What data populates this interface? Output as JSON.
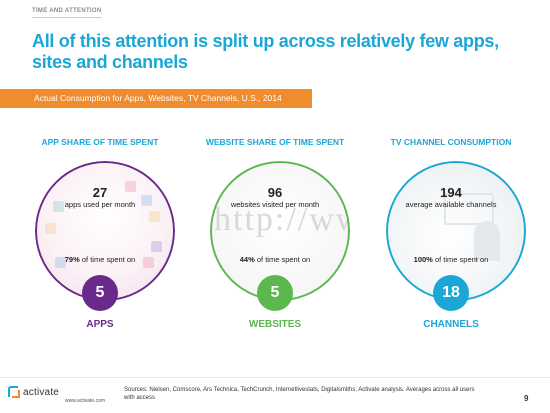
{
  "section_label": "TIME AND ATTENTION",
  "headline": "All of this attention is split up across relatively few apps, sites and channels",
  "banner": "Actual Consumption for Apps, Websites, TV Channels, U.S., 2014",
  "columns": [
    {
      "title": "APP SHARE OF TIME SPENT",
      "count": "27",
      "description": "apps used per month",
      "share_percent": "79%",
      "share_text": " of time spent on",
      "badge_value": "5",
      "badge_label": "APPS",
      "color": "#6a2a8c"
    },
    {
      "title": "WEBSITE SHARE OF TIME SPENT",
      "count": "96",
      "description": "websites visited per month",
      "share_percent": "44%",
      "share_text": " of time spent on",
      "badge_value": "5",
      "badge_label": "WEBSITES",
      "watermark": "http://www",
      "color": "#5bb84f"
    },
    {
      "title": "TV CHANNEL CONSUMPTION",
      "count": "194",
      "description": "average available channels",
      "share_percent": "100%",
      "share_text": " of time spent on",
      "badge_value": "18",
      "badge_label": "CHANNELS",
      "color": "#1ba7d6"
    }
  ],
  "footer": {
    "logo_text": "activate",
    "url": "www.activate.com",
    "sources": "Sources: Nielsen, Comscore, Ars Technica, TechCrunch, Internetlivestats, Digitalsmiths, Activate analysis. Averages across all users with access",
    "page_number": "9"
  },
  "colors": {
    "accent": "#1ba7d6",
    "banner": "#f08c2e",
    "apps": "#6a2a8c",
    "websites": "#5bb84f",
    "channels": "#1ba7d6"
  }
}
